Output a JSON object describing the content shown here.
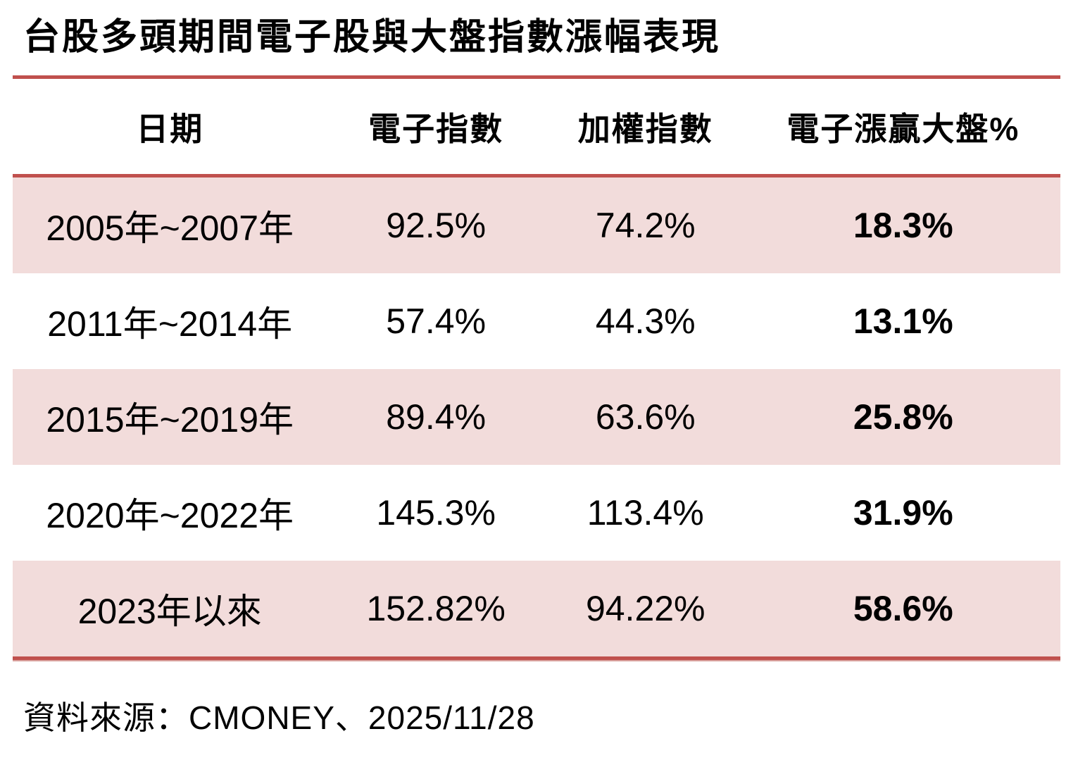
{
  "title": "台股多頭期間電子股與大盤指數漲幅表現",
  "table": {
    "columns": [
      "日期",
      "電子指數",
      "加權指數",
      "電子漲贏大盤%"
    ],
    "rows": [
      [
        "2005年~2007年",
        "92.5%",
        "74.2%",
        "18.3%"
      ],
      [
        "2011年~2014年",
        "57.4%",
        "44.3%",
        "13.1%"
      ],
      [
        "2015年~2019年",
        "89.4%",
        "63.6%",
        "25.8%"
      ],
      [
        "2020年~2022年",
        "145.3%",
        "113.4%",
        "31.9%"
      ],
      [
        "2023年以來",
        "152.82%",
        "94.22%",
        "58.6%"
      ]
    ]
  },
  "source": "資料來源：CMONEY、2025/11/28",
  "colors": {
    "accent_rule": "#C0504D",
    "row_shade": "#F2DCDB",
    "text": "#000000"
  },
  "chart_data": {
    "type": "table",
    "title": "台股多頭期間電子股與大盤指數漲幅表現",
    "columns": [
      "日期",
      "電子指數",
      "加權指數",
      "電子漲贏大盤%"
    ],
    "rows": [
      [
        "2005年~2007年",
        "92.5%",
        "74.2%",
        "18.3%"
      ],
      [
        "2011年~2014年",
        "57.4%",
        "44.3%",
        "13.1%"
      ],
      [
        "2015年~2019年",
        "89.4%",
        "63.6%",
        "25.8%"
      ],
      [
        "2020年~2022年",
        "145.3%",
        "113.4%",
        "31.9%"
      ],
      [
        "2023年以來",
        "152.82%",
        "94.22%",
        "58.6%"
      ]
    ],
    "categories": [
      "2005年~2007年",
      "2011年~2014年",
      "2015年~2019年",
      "2020年~2022年",
      "2023年以來"
    ],
    "series": [
      {
        "name": "電子指數",
        "values": [
          92.5,
          57.4,
          89.4,
          145.3,
          152.82
        ]
      },
      {
        "name": "加權指數",
        "values": [
          74.2,
          44.3,
          63.6,
          113.4,
          94.22
        ]
      },
      {
        "name": "電子漲贏大盤%",
        "values": [
          18.3,
          13.1,
          25.8,
          31.9,
          58.6
        ]
      }
    ],
    "unit": "percent",
    "source": "資料來源：CMONEY、2025/11/28",
    "layout": {
      "shaded_rows": [
        0,
        2,
        4
      ],
      "bold_column": 3,
      "rules_color": "#C0504D"
    }
  }
}
